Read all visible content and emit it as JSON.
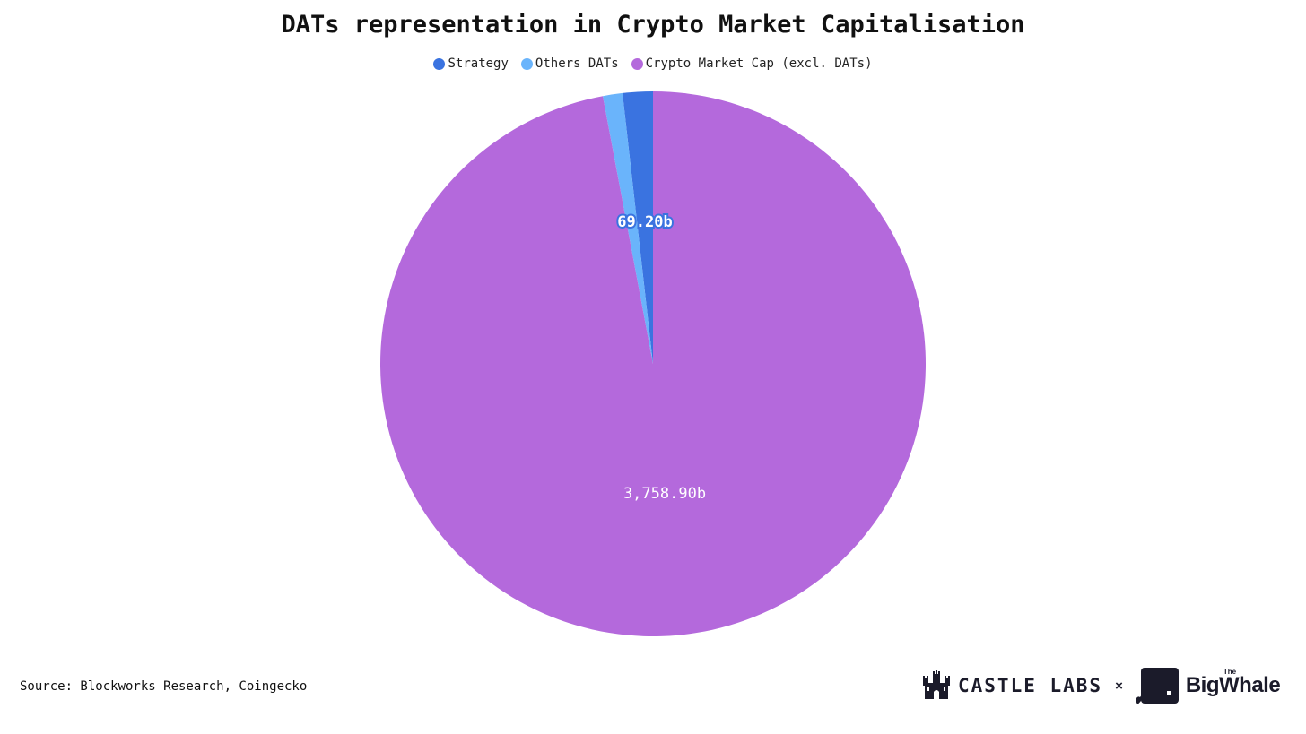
{
  "chart_data": {
    "type": "pie",
    "title": "DATs representation in Crypto Market Capitalisation",
    "legend_position": "top-center",
    "series": [
      {
        "name": "Strategy",
        "value": 69.2,
        "label": "69.20b",
        "color": "#3a73e0"
      },
      {
        "name": "Others DATs",
        "value": 45.0,
        "label": "",
        "color": "#6ab4fb"
      },
      {
        "name": "Crypto Market Cap (excl. DATs)",
        "value": 3758.9,
        "label": "3,758.90b",
        "color": "#b469dc"
      }
    ]
  },
  "source": "Source: Blockworks Research, Coingecko",
  "logos": {
    "castle": "CASTLE LABS",
    "times": "×",
    "bigwhale_the": "The",
    "bigwhale": "BigWhale"
  },
  "icons": {
    "castle": "castle-icon",
    "whale": "whale-icon"
  }
}
